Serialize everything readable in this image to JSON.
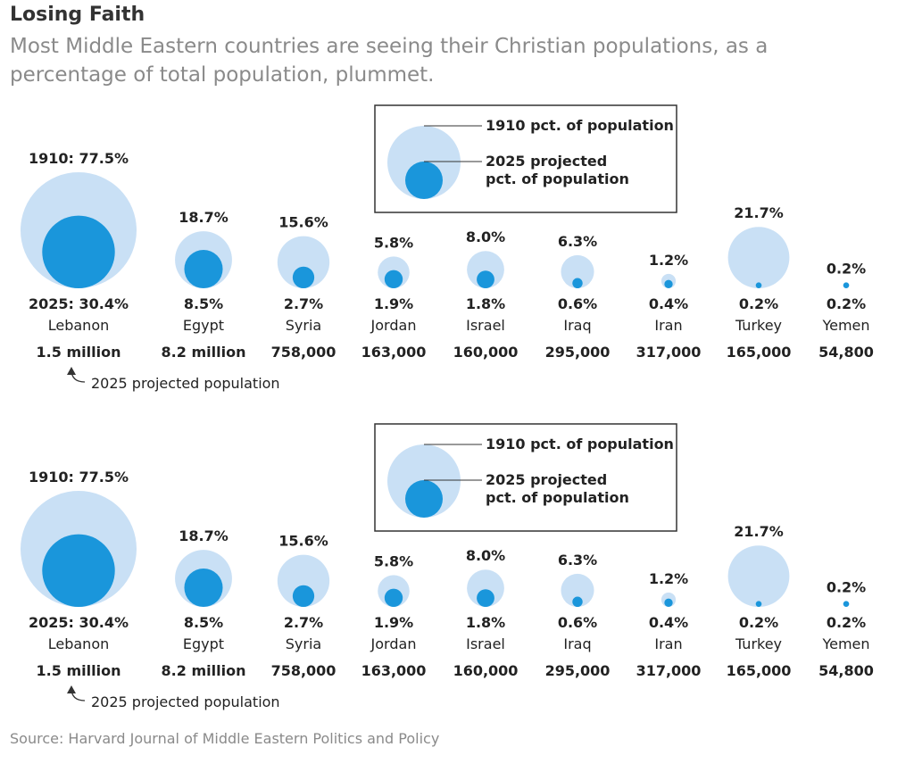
{
  "title": "Losing Faith",
  "subtitle": "Most Middle Eastern countries are seeing their Christian populations, as a percentage of total population, plummet.",
  "source": "Source: Harvard Journal of Middle Eastern Politics and Policy",
  "colors": {
    "pct_1910": "#c9e0f5",
    "pct_2025": "#1a96db",
    "text": "#222222",
    "muted": "#8a8a8a"
  },
  "legend": {
    "label_1910": "1910 pct. of population",
    "label_2025_line1": "2025 projected",
    "label_2025_line2": "pct. of population"
  },
  "lebanon_prefix_1910": "1910: ",
  "lebanon_prefix_2025": "2025: ",
  "population_annotation": "2025 projected population",
  "chart_data": [
    {
      "type": "bubble",
      "title": "",
      "series": [
        {
          "name": "1910 pct. of population",
          "values": [
            77.5,
            18.7,
            15.6,
            5.8,
            8.0,
            6.3,
            1.2,
            21.7,
            0.2
          ]
        },
        {
          "name": "2025 projected pct. of population",
          "values": [
            30.4,
            8.5,
            2.7,
            1.9,
            1.8,
            0.6,
            0.4,
            0.2,
            0.2
          ]
        }
      ],
      "categories": [
        "Lebanon",
        "Egypt",
        "Syria",
        "Jordan",
        "Israel",
        "Iraq",
        "Iran",
        "Turkey",
        "Yemen"
      ],
      "labels_1910": [
        "77.5%",
        "18.7%",
        "15.6%",
        "5.8%",
        "8.0%",
        "6.3%",
        "1.2%",
        "21.7%",
        "0.2%"
      ],
      "labels_2025": [
        "30.4%",
        "8.5%",
        "2.7%",
        "1.9%",
        "1.8%",
        "0.6%",
        "0.4%",
        "0.2%",
        "0.2%"
      ],
      "populations": [
        "1.5 million",
        "8.2 million",
        "758,000",
        "163,000",
        "160,000",
        "295,000",
        "317,000",
        "165,000",
        "54,800"
      ],
      "population_label": "2025 projected population"
    },
    {
      "type": "bubble",
      "title": "",
      "series": [
        {
          "name": "1910 pct. of population",
          "values": [
            77.5,
            18.7,
            15.6,
            5.8,
            8.0,
            6.3,
            1.2,
            21.7,
            0.2
          ]
        },
        {
          "name": "2025 projected pct. of population",
          "values": [
            30.4,
            8.5,
            2.7,
            1.9,
            1.8,
            0.6,
            0.4,
            0.2,
            0.2
          ]
        }
      ],
      "categories": [
        "Lebanon",
        "Egypt",
        "Syria",
        "Jordan",
        "Israel",
        "Iraq",
        "Iran",
        "Turkey",
        "Yemen"
      ],
      "labels_1910": [
        "77.5%",
        "18.7%",
        "15.6%",
        "5.8%",
        "8.0%",
        "6.3%",
        "1.2%",
        "21.7%",
        "0.2%"
      ],
      "labels_2025": [
        "30.4%",
        "8.5%",
        "2.7%",
        "1.9%",
        "1.8%",
        "0.6%",
        "0.4%",
        "0.2%",
        "0.2%"
      ],
      "populations": [
        "1.5 million",
        "8.2 million",
        "758,000",
        "163,000",
        "160,000",
        "295,000",
        "317,000",
        "165,000",
        "54,800"
      ],
      "population_label": "2025 projected population"
    }
  ]
}
